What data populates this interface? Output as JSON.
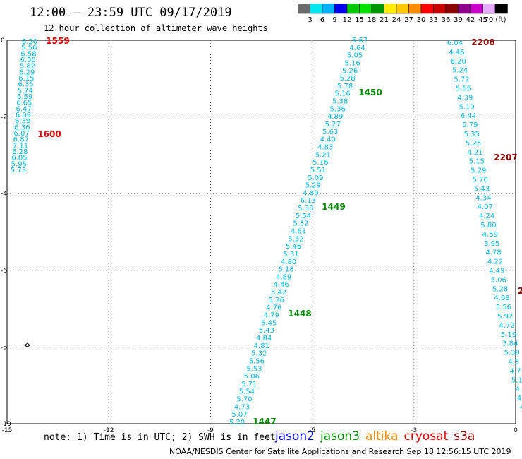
{
  "header": {
    "title": "12:00 – 23:59 UTC 09/17/2019",
    "subtitle": "12 hour collection of altimeter wave heights"
  },
  "colorbar": {
    "unit_label": "(ft)",
    "colors": [
      "#6b6b6b",
      "#00e5ee",
      "#00b0ff",
      "#0000ee",
      "#00c800",
      "#00e100",
      "#009600",
      "#ffee00",
      "#ffc800",
      "#ff8c00",
      "#ff0000",
      "#c80000",
      "#8c0000",
      "#8c008c",
      "#c800c8",
      "#e6aaff",
      "#000000"
    ],
    "ticks": [
      "3",
      "6",
      "9",
      "12",
      "15",
      "18",
      "21",
      "24",
      "27",
      "30",
      "33",
      "36",
      "39",
      "42",
      "45",
      "70"
    ]
  },
  "axes": {
    "x_ticks": [
      "-15",
      "-12",
      "-9",
      "-6",
      "-3",
      "0"
    ],
    "y_ticks": [
      "0",
      "-2",
      "-4",
      "-6",
      "-8",
      "-10"
    ]
  },
  "track_left": {
    "color": "#00b8e0",
    "values": [
      "6.20",
      "5.56",
      "6.58",
      "6.50",
      "5.82",
      "6.29",
      "6.15",
      "6.35",
      "5.74",
      "6.59",
      "6.65",
      "6.47",
      "6.09",
      "6.39",
      "6.36",
      "6.07",
      "6.87",
      "7.11",
      "6.28",
      "6.05",
      "5.95",
      "5.73"
    ]
  },
  "track_middle": {
    "color": "#00b8e0",
    "values": [
      "5.67",
      "4.64",
      "5.05",
      "5.16",
      "5.26",
      "5.28",
      "5.78",
      "5.16",
      "5.38",
      "5.36",
      "4.89",
      "5.27",
      "5.63",
      "4.40",
      "4.83",
      "5.21",
      "5.16",
      "5.51",
      "5.09",
      "5.29",
      "4.89",
      "6.13",
      "5.33",
      "5.54",
      "5.32",
      "4.61",
      "5.52",
      "5.46",
      "5.31",
      "4.80",
      "5.18",
      "4.89",
      "4.46",
      "5.42",
      "5.26",
      "4.76",
      "4.79",
      "5.45",
      "5.43",
      "4.84",
      "4.81",
      "5.32",
      "5.56",
      "5.53",
      "5.06",
      "5.71",
      "5.54",
      "5.70",
      "4.73",
      "5.07",
      "5.20"
    ]
  },
  "track_right": {
    "color": "#00b8e0",
    "values": [
      "6.04",
      "4.46",
      "6.20",
      "5.24",
      "5.72",
      "5.55",
      "4.39",
      "5.19",
      "6.44",
      "5.79",
      "5.35",
      "5.25",
      "4.21",
      "5.15",
      "5.29",
      "5.76",
      "5.43",
      "4.34",
      "4.07",
      "4.24",
      "5.80",
      "4.59",
      "3.95",
      "4.78",
      "4.22",
      "4.49",
      "5.06",
      "5.28",
      "4.68",
      "5.56",
      "5.92",
      "4.72",
      "5.19",
      "3.84",
      "5.38",
      "4.3",
      "4.7",
      "5.1",
      "4.",
      "4.",
      "4"
    ]
  },
  "time_labels": [
    {
      "text": "1559",
      "color": "#dd0000"
    },
    {
      "text": "1600",
      "color": "#dd0000"
    },
    {
      "text": "1450",
      "color": "#008800"
    },
    {
      "text": "1449",
      "color": "#008800"
    },
    {
      "text": "1448",
      "color": "#008800"
    },
    {
      "text": "1447",
      "color": "#008800"
    },
    {
      "text": "2208",
      "color": "#880000"
    },
    {
      "text": "2207",
      "color": "#880000"
    },
    {
      "text": "2",
      "color": "#880000"
    }
  ],
  "note": "note: 1) Time is in UTC; 2) SWH is in feet",
  "legend": [
    {
      "label": "jason2",
      "color": "#0000dd"
    },
    {
      "label": "jason3",
      "color": "#008800"
    },
    {
      "label": "altika",
      "color": "#ff8c00"
    },
    {
      "label": "cryosat",
      "color": "#dd0000"
    },
    {
      "label": "s3a",
      "color": "#880000"
    }
  ],
  "credit": "NOAA/NESDIS Center for Satellite Applications and Research   Sep 18 12:56:15 UTC 2019"
}
